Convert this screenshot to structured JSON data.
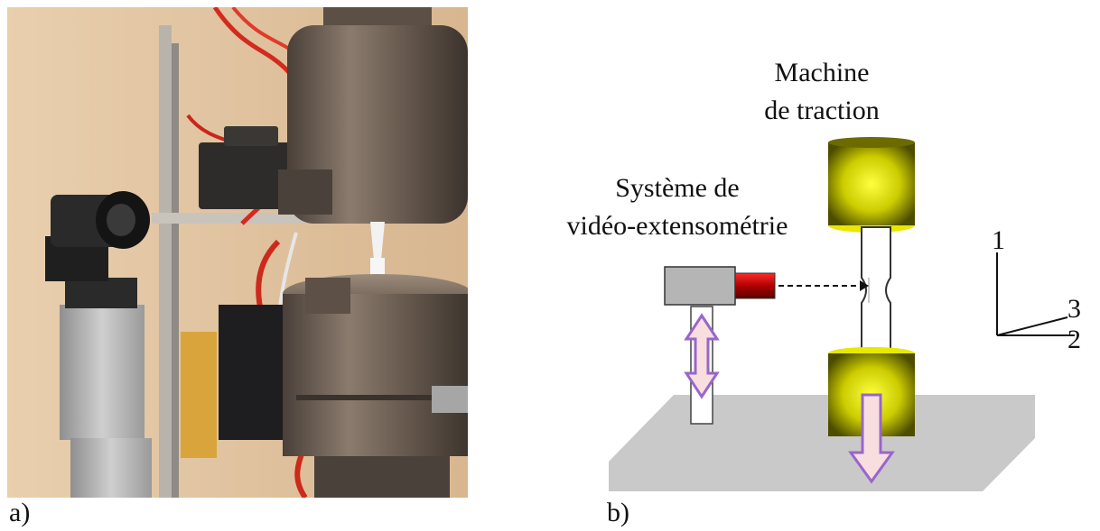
{
  "labels": {
    "panel_a": "a)",
    "panel_b": "b)"
  },
  "diagram": {
    "machine_label_line1": "Machine",
    "machine_label_line2": "de traction",
    "video_label_line1": "Système de",
    "video_label_line2": "vidéo-extensométrie",
    "axis_1": "1",
    "axis_2": "2",
    "axis_3": "3"
  },
  "colors": {
    "grip_yellow": "#e6e600",
    "grip_dark": "#5a5a00",
    "camera_body": "#b5b5b5",
    "lens_red": "#c00000",
    "arrow_fill": "#f8dede",
    "arrow_stroke": "#9966cc",
    "base_plate": "#c9c9c9"
  }
}
